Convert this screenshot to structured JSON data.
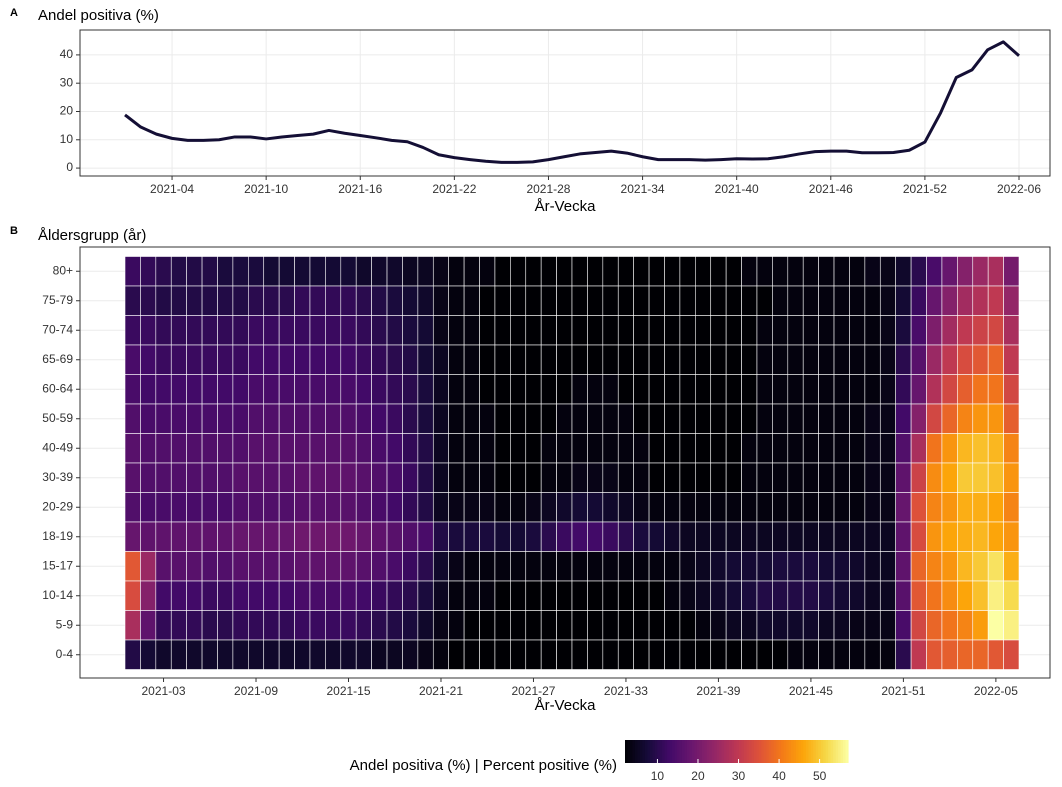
{
  "chart_data": [
    {
      "type": "line",
      "tag": "A",
      "title": "Andel positiva (%)",
      "xlabel": "År-Vecka",
      "color": "#140f35",
      "grid": true,
      "categories": [
        null,
        null,
        null,
        "2021-04",
        null,
        null,
        null,
        null,
        null,
        "2021-10",
        null,
        null,
        null,
        null,
        null,
        "2021-16",
        null,
        null,
        null,
        null,
        null,
        "2021-22",
        null,
        null,
        null,
        null,
        null,
        "2021-28",
        null,
        null,
        null,
        null,
        null,
        "2021-34",
        null,
        null,
        null,
        null,
        null,
        "2021-40",
        null,
        null,
        null,
        null,
        null,
        "2021-46",
        null,
        null,
        null,
        null,
        null,
        "2021-52",
        null,
        null,
        null,
        null,
        null,
        "2022-06"
      ],
      "values": [
        18.8,
        14.5,
        12,
        10.5,
        9.8,
        9.8,
        10,
        11,
        11,
        10.3,
        11,
        11.5,
        12,
        13.3,
        12.3,
        11.5,
        10.7,
        9.8,
        9.3,
        7.3,
        4.7,
        3.7,
        3,
        2.4,
        2,
        2,
        2.2,
        3,
        4,
        5,
        5.5,
        6,
        5.3,
        4,
        3,
        3,
        3,
        2.8,
        3,
        3.3,
        3.2,
        3.3,
        4,
        5,
        5.8,
        6,
        6,
        5.4,
        5.4,
        5.5,
        6.3,
        9.2,
        19.5,
        32,
        34.7,
        41.8,
        44.6,
        39.7
      ],
      "ylim": [
        -2.8,
        48.8
      ],
      "yticks": [
        0,
        10,
        20,
        30,
        40
      ]
    },
    {
      "type": "heatmap",
      "tag": "B",
      "title": "Åldersgrupp (år)",
      "xlabel": "År-Vecka",
      "colormap": "inferno",
      "colorbar_title": "Andel positiva (%)  |  Percent positive (%)",
      "clim": [
        2,
        57
      ],
      "cticks": [
        10,
        20,
        30,
        40,
        50
      ],
      "categories": [
        null,
        null,
        "2021-03",
        null,
        null,
        null,
        null,
        null,
        "2021-09",
        null,
        null,
        null,
        null,
        null,
        "2021-15",
        null,
        null,
        null,
        null,
        null,
        "2021-21",
        null,
        null,
        null,
        null,
        null,
        "2021-27",
        null,
        null,
        null,
        null,
        null,
        "2021-33",
        null,
        null,
        null,
        null,
        null,
        "2021-39",
        null,
        null,
        null,
        null,
        null,
        "2021-45",
        null,
        null,
        null,
        null,
        null,
        "2021-51",
        null,
        null,
        null,
        null,
        null,
        "2022-05",
        null
      ],
      "y": [
        "80+",
        "75-79",
        "70-74",
        "65-69",
        "60-64",
        "50-59",
        "40-49",
        "30-39",
        "20-29",
        "18-19",
        "15-17",
        "10-14",
        "5-9",
        "0-4"
      ],
      "values": [
        [
          12,
          11,
          10,
          9,
          9,
          9,
          8,
          8,
          8,
          7,
          7,
          7,
          7,
          7,
          7,
          6,
          6,
          6,
          5,
          5,
          4,
          3,
          3,
          3,
          2,
          2,
          2,
          2,
          2,
          2,
          2,
          2,
          2,
          2,
          2,
          2,
          2,
          2,
          2,
          2,
          3,
          3,
          3,
          3,
          3,
          3,
          3,
          3,
          4,
          4,
          6,
          10,
          14,
          18,
          22,
          25,
          27,
          20
        ],
        [
          10,
          10,
          9,
          9,
          9,
          9,
          9,
          9,
          10,
          10,
          10,
          11,
          11,
          11,
          11,
          10,
          9,
          8,
          7,
          6,
          4,
          3,
          3,
          2,
          2,
          2,
          2,
          2,
          2,
          2,
          2,
          2,
          2,
          2,
          2,
          2,
          2,
          2,
          2,
          2,
          2,
          2,
          3,
          3,
          3,
          3,
          3,
          3,
          3,
          4,
          7,
          12,
          18,
          22,
          26,
          28,
          30,
          24
        ],
        [
          12,
          12,
          11,
          11,
          11,
          11,
          11,
          11,
          12,
          12,
          12,
          12,
          12,
          12,
          12,
          11,
          10,
          9,
          8,
          7,
          4,
          3,
          3,
          2,
          2,
          2,
          2,
          2,
          2,
          2,
          2,
          2,
          2,
          2,
          2,
          2,
          2,
          2,
          2,
          2,
          2,
          3,
          3,
          3,
          3,
          3,
          3,
          3,
          3,
          4,
          8,
          14,
          21,
          26,
          30,
          32,
          33,
          27
        ],
        [
          14,
          13,
          12,
          12,
          12,
          12,
          12,
          12,
          13,
          13,
          13,
          13,
          13,
          13,
          13,
          12,
          11,
          10,
          9,
          7,
          5,
          3,
          3,
          2,
          2,
          2,
          2,
          2,
          2,
          2,
          2,
          2,
          2,
          2,
          2,
          2,
          2,
          2,
          2,
          2,
          2,
          3,
          3,
          3,
          3,
          3,
          3,
          3,
          3,
          4,
          10,
          16,
          25,
          30,
          34,
          36,
          38,
          30
        ],
        [
          14,
          13,
          13,
          13,
          13,
          13,
          13,
          13,
          14,
          14,
          14,
          14,
          14,
          14,
          14,
          13,
          12,
          11,
          10,
          8,
          5,
          3,
          3,
          2,
          2,
          2,
          2,
          2,
          2,
          3,
          3,
          3,
          2,
          2,
          2,
          2,
          2,
          2,
          2,
          2,
          2,
          3,
          3,
          3,
          3,
          3,
          3,
          3,
          3,
          4,
          11,
          18,
          28,
          33,
          37,
          40,
          40,
          33
        ],
        [
          15,
          14,
          14,
          14,
          14,
          14,
          14,
          14,
          15,
          15,
          15,
          15,
          15,
          15,
          15,
          14,
          13,
          12,
          10,
          8,
          5,
          3,
          3,
          3,
          2,
          2,
          2,
          2,
          3,
          3,
          3,
          3,
          3,
          2,
          2,
          2,
          2,
          2,
          2,
          2,
          2,
          3,
          3,
          3,
          3,
          3,
          3,
          3,
          4,
          4,
          13,
          22,
          33,
          38,
          42,
          44,
          44,
          37
        ],
        [
          16,
          15,
          15,
          15,
          15,
          15,
          15,
          15,
          16,
          16,
          16,
          16,
          16,
          16,
          16,
          15,
          14,
          13,
          11,
          9,
          5,
          3,
          3,
          3,
          2,
          2,
          2,
          3,
          3,
          3,
          3,
          3,
          3,
          3,
          2,
          2,
          2,
          2,
          2,
          2,
          3,
          3,
          3,
          3,
          3,
          3,
          3,
          3,
          4,
          4,
          15,
          27,
          40,
          44,
          48,
          49,
          48,
          42
        ],
        [
          16,
          15,
          15,
          15,
          15,
          15,
          15,
          16,
          16,
          16,
          16,
          17,
          17,
          17,
          17,
          16,
          15,
          14,
          12,
          9,
          5,
          3,
          3,
          3,
          2,
          2,
          2,
          3,
          3,
          4,
          4,
          4,
          3,
          3,
          2,
          2,
          2,
          2,
          2,
          2,
          3,
          3,
          3,
          3,
          3,
          3,
          3,
          3,
          4,
          4,
          17,
          32,
          43,
          46,
          50,
          50,
          49,
          44
        ],
        [
          15,
          14,
          14,
          14,
          14,
          14,
          14,
          15,
          15,
          15,
          15,
          16,
          16,
          16,
          16,
          15,
          14,
          13,
          11,
          9,
          5,
          4,
          4,
          4,
          3,
          3,
          4,
          5,
          6,
          7,
          7,
          6,
          5,
          4,
          3,
          3,
          3,
          3,
          3,
          3,
          3,
          3,
          3,
          3,
          3,
          3,
          3,
          3,
          4,
          4,
          18,
          35,
          42,
          44,
          47,
          47,
          46,
          42
        ],
        [
          18,
          17,
          17,
          17,
          17,
          17,
          17,
          18,
          18,
          18,
          18,
          19,
          19,
          19,
          19,
          18,
          17,
          16,
          15,
          14,
          9,
          8,
          8,
          8,
          7,
          7,
          8,
          10,
          12,
          13,
          13,
          12,
          10,
          8,
          7,
          6,
          5,
          5,
          5,
          5,
          5,
          5,
          5,
          5,
          5,
          5,
          5,
          5,
          5,
          5,
          17,
          34,
          44,
          46,
          47,
          48,
          46,
          44
        ],
        [
          36,
          25,
          16,
          16,
          16,
          15,
          15,
          16,
          16,
          16,
          16,
          17,
          17,
          17,
          17,
          16,
          15,
          14,
          12,
          10,
          6,
          4,
          3,
          3,
          3,
          3,
          3,
          3,
          3,
          3,
          3,
          3,
          3,
          3,
          3,
          3,
          4,
          5,
          6,
          7,
          7,
          7,
          8,
          8,
          8,
          7,
          7,
          6,
          5,
          5,
          17,
          38,
          42,
          44,
          48,
          50,
          53,
          47
        ],
        [
          34,
          22,
          13,
          13,
          13,
          12,
          12,
          13,
          13,
          13,
          13,
          14,
          14,
          14,
          14,
          13,
          12,
          11,
          10,
          8,
          5,
          3,
          3,
          3,
          2,
          2,
          2,
          2,
          2,
          2,
          2,
          2,
          2,
          2,
          2,
          3,
          4,
          5,
          6,
          7,
          8,
          9,
          9,
          9,
          9,
          8,
          7,
          6,
          5,
          5,
          16,
          36,
          40,
          43,
          46,
          49,
          55,
          52
        ],
        [
          27,
          17,
          11,
          11,
          11,
          10,
          10,
          11,
          11,
          11,
          11,
          12,
          12,
          12,
          12,
          11,
          10,
          9,
          8,
          6,
          4,
          3,
          2,
          2,
          2,
          2,
          2,
          2,
          2,
          2,
          2,
          2,
          2,
          2,
          2,
          2,
          2,
          3,
          4,
          5,
          5,
          6,
          6,
          6,
          6,
          5,
          5,
          4,
          4,
          4,
          14,
          33,
          38,
          40,
          42,
          45,
          57,
          55
        ],
        [
          9,
          7,
          6,
          6,
          6,
          6,
          6,
          6,
          6,
          6,
          6,
          6,
          6,
          6,
          6,
          6,
          5,
          5,
          5,
          4,
          3,
          2,
          2,
          2,
          2,
          2,
          2,
          2,
          2,
          2,
          2,
          2,
          2,
          2,
          2,
          2,
          2,
          2,
          2,
          2,
          2,
          2,
          2,
          3,
          3,
          3,
          3,
          3,
          3,
          3,
          10,
          30,
          36,
          37,
          38,
          38,
          36,
          34
        ]
      ]
    }
  ]
}
